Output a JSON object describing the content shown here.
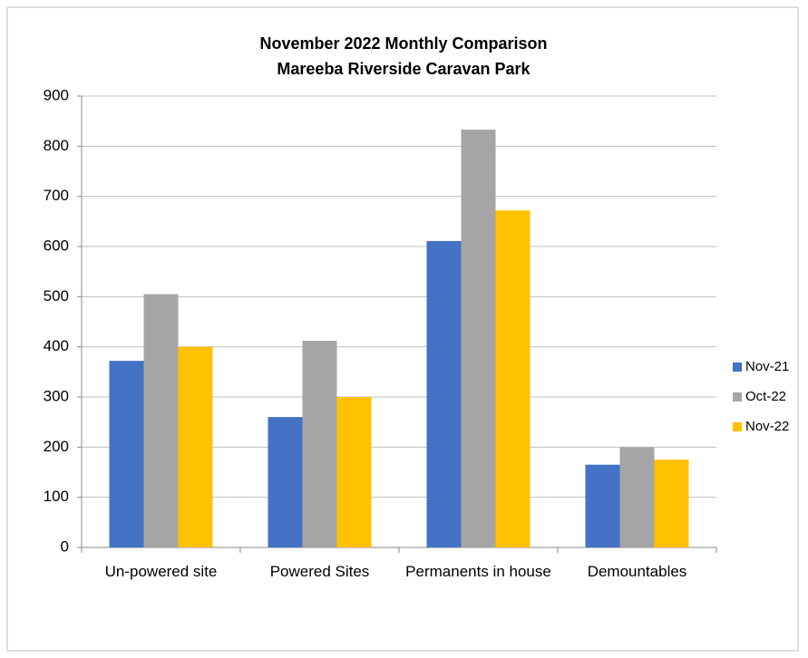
{
  "chart_data": {
    "type": "bar",
    "title": [
      "November 2022  Monthly Comparison",
      "Mareeba Riverside Caravan Park"
    ],
    "categories": [
      "Un-powered site",
      "Powered Sites",
      "Permanents in house",
      "Demountables"
    ],
    "series": [
      {
        "name": "Nov-21",
        "color": "#4472c4",
        "values": [
          372,
          260,
          611,
          165
        ]
      },
      {
        "name": "Oct-22",
        "color": "#a5a5a5",
        "values": [
          505,
          412,
          833,
          200
        ]
      },
      {
        "name": "Nov-22",
        "color": "#ffc000",
        "values": [
          400,
          300,
          672,
          175
        ]
      }
    ],
    "ylim": [
      0,
      900
    ],
    "yticks": [
      0,
      100,
      200,
      300,
      400,
      500,
      600,
      700,
      800,
      900
    ],
    "grid": true,
    "legend": "right"
  }
}
